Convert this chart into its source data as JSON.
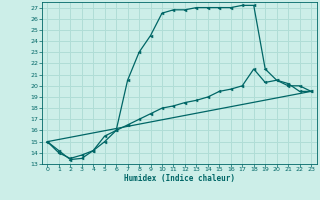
{
  "xlabel": "Humidex (Indice chaleur)",
  "bg_color": "#cceee8",
  "grid_color": "#b0ddd6",
  "line_color": "#006666",
  "xlim": [
    -0.5,
    23.5
  ],
  "ylim": [
    13,
    27.5
  ],
  "xtick_labels": [
    "0",
    "1",
    "2",
    "3",
    "4",
    "5",
    "6",
    "7",
    "8",
    "9",
    "10",
    "11",
    "12",
    "13",
    "14",
    "15",
    "16",
    "17",
    "18",
    "19",
    "20",
    "21",
    "22",
    "23"
  ],
  "xticks": [
    0,
    1,
    2,
    3,
    4,
    5,
    6,
    7,
    8,
    9,
    10,
    11,
    12,
    13,
    14,
    15,
    16,
    17,
    18,
    19,
    20,
    21,
    22,
    23
  ],
  "yticks": [
    13,
    14,
    15,
    16,
    17,
    18,
    19,
    20,
    21,
    22,
    23,
    24,
    25,
    26,
    27
  ],
  "line1_x": [
    0,
    1,
    2,
    3,
    4,
    5,
    6,
    7,
    8,
    9,
    10,
    11,
    12,
    13,
    14,
    15,
    16,
    17,
    18,
    19,
    20,
    21,
    22,
    23
  ],
  "line1_y": [
    15,
    14,
    13.5,
    13.8,
    14.2,
    15.0,
    16.0,
    20.5,
    23.0,
    24.5,
    26.5,
    26.8,
    26.8,
    27.0,
    27.0,
    27.0,
    27.0,
    27.2,
    27.2,
    21.5,
    20.5,
    20.0,
    20.0,
    19.5
  ],
  "line2_x": [
    0,
    1,
    2,
    3,
    4,
    5,
    6,
    7,
    8,
    9,
    10,
    11,
    12,
    13,
    14,
    15,
    16,
    17,
    18,
    19,
    20,
    21,
    22,
    23
  ],
  "line2_y": [
    15,
    14.2,
    13.4,
    13.5,
    14.2,
    15.5,
    16.0,
    16.5,
    17.0,
    17.5,
    18.0,
    18.2,
    18.5,
    18.7,
    19.0,
    19.5,
    19.7,
    20.0,
    21.5,
    20.3,
    20.5,
    20.2,
    19.5,
    19.5
  ],
  "line3_x": [
    0,
    23
  ],
  "line3_y": [
    15,
    19.5
  ]
}
